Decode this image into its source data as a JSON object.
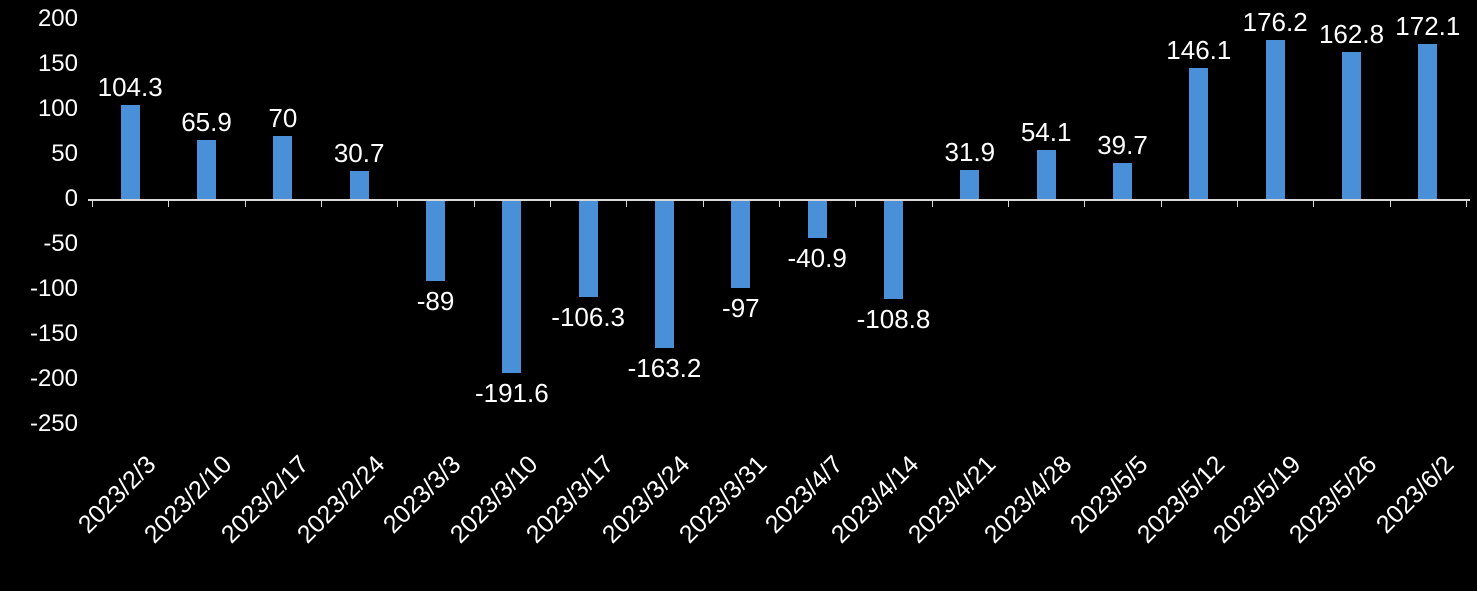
{
  "chart_data": {
    "type": "bar",
    "title": "",
    "xlabel": "",
    "ylabel": "",
    "categories": [
      "2023/2/3",
      "2023/2/10",
      "2023/2/17",
      "2023/2/24",
      "2023/3/3",
      "2023/3/10",
      "2023/3/17",
      "2023/3/24",
      "2023/3/31",
      "2023/4/7",
      "2023/4/14",
      "2023/4/21",
      "2023/4/28",
      "2023/5/5",
      "2023/5/12",
      "2023/5/19",
      "2023/5/26",
      "2023/6/2"
    ],
    "values": [
      104.3,
      65.9,
      70,
      30.7,
      -89,
      -191.6,
      -106.3,
      -163.2,
      -97,
      -40.9,
      -108.8,
      31.9,
      54.1,
      39.7,
      146.1,
      176.2,
      162.8,
      172.1
    ],
    "value_labels": [
      "104.3",
      "65.9",
      "70",
      "30.7",
      "-89",
      "-191.6",
      "-106.3",
      "-163.2",
      "-97",
      "-40.9",
      "-108.8",
      "31.9",
      "54.1",
      "39.7",
      "146.1",
      "176.2",
      "162.8",
      "172.1"
    ],
    "yticks": [
      200,
      150,
      100,
      50,
      0,
      -50,
      -100,
      -150,
      -200,
      -250
    ],
    "ylim": [
      -250,
      200
    ],
    "grid": false,
    "legend_position": "none",
    "bar_color": "#4A90D9",
    "background_color": "#000000",
    "text_color": "#FFFFFF",
    "axis_color": "#D9D9D9"
  }
}
